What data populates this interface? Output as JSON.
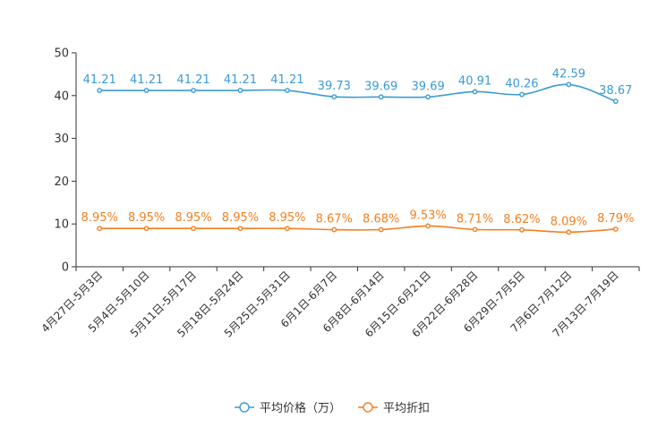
{
  "chart_data": {
    "type": "line",
    "categories": [
      "4月27日-5月3日",
      "5月4日-5月10日",
      "5月11日-5月17日",
      "5月18日-5月24日",
      "5月25日-5月31日",
      "6月1日-6月7日",
      "6月8日-6月14日",
      "6月15日-6月21日",
      "6月22日-6月28日",
      "6月29日-7月5日",
      "7月6日-7月12日",
      "7月13日-7月19日"
    ],
    "series": [
      {
        "name": "平均价格（万）",
        "color": "#3b9bd4",
        "values": [
          41.21,
          41.21,
          41.21,
          41.21,
          41.21,
          39.73,
          39.69,
          39.69,
          40.91,
          40.26,
          42.59,
          38.67
        ],
        "labels": [
          "41.21",
          "41.21",
          "41.21",
          "41.21",
          "41.21",
          "39.73",
          "39.69",
          "39.69",
          "40.91",
          "40.26",
          "42.59",
          "38.67"
        ]
      },
      {
        "name": "平均折扣",
        "color": "#f47f20",
        "values": [
          8.95,
          8.95,
          8.95,
          8.95,
          8.95,
          8.67,
          8.68,
          9.53,
          8.71,
          8.62,
          8.09,
          8.79
        ],
        "labels": [
          "8.95%",
          "8.95%",
          "8.95%",
          "8.95%",
          "8.95%",
          "8.67%",
          "8.68%",
          "9.53%",
          "8.71%",
          "8.62%",
          "8.09%",
          "8.79%"
        ]
      }
    ],
    "ylim": [
      0,
      50
    ],
    "yticks": [
      0,
      10,
      20,
      30,
      40,
      50
    ],
    "grid": false,
    "legend": "bottom-center",
    "title": "",
    "xlabel": "",
    "ylabel": ""
  }
}
